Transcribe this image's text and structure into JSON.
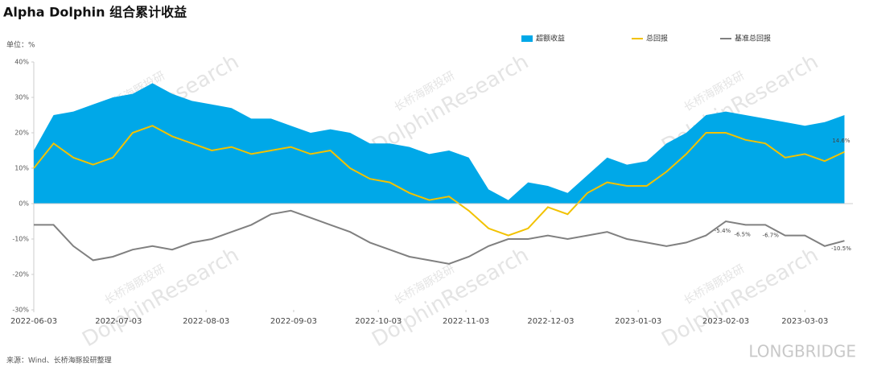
{
  "chart_data": {
    "type": "area-line",
    "title": "Alpha Dolphin 组合累计收益",
    "unit_label": "单位：%",
    "source": "来源：Wind、长桥海豚投研整理",
    "watermarks": [
      "长桥海豚投研",
      "LONGBRIDGE",
      "DolphinResearch"
    ],
    "x": [
      "2022-06-03",
      "2022-06-10",
      "2022-06-17",
      "2022-06-24",
      "2022-07-01",
      "2022-07-08",
      "2022-07-15",
      "2022-07-22",
      "2022-07-29",
      "2022-08-05",
      "2022-08-12",
      "2022-08-19",
      "2022-08-26",
      "2022-09-02",
      "2022-09-09",
      "2022-09-16",
      "2022-09-23",
      "2022-09-30",
      "2022-10-07",
      "2022-10-14",
      "2022-10-21",
      "2022-10-28",
      "2022-11-04",
      "2022-11-11",
      "2022-11-18",
      "2022-11-25",
      "2022-12-02",
      "2022-12-09",
      "2022-12-16",
      "2022-12-23",
      "2022-12-30",
      "2023-01-06",
      "2023-01-13",
      "2023-01-20",
      "2023-01-27",
      "2023-02-03",
      "2023-02-10",
      "2023-02-17",
      "2023-02-24",
      "2023-03-03",
      "2023-03-10",
      "2023-03-17"
    ],
    "series": [
      {
        "name": "超额收益",
        "kind": "area",
        "color": "#00a8e8",
        "values": [
          15,
          25,
          26,
          28,
          30,
          31,
          34,
          31,
          29,
          28,
          27,
          24,
          24,
          22,
          20,
          21,
          20,
          17,
          17,
          16,
          14,
          15,
          13,
          4,
          1,
          6,
          5,
          3,
          8,
          13,
          11,
          12,
          17,
          20,
          25,
          26,
          25,
          24,
          23,
          22,
          23,
          25
        ]
      },
      {
        "name": "总回报",
        "kind": "line",
        "color": "#f2c200",
        "values": [
          10,
          17,
          13,
          11,
          13,
          20,
          22,
          19,
          17,
          15,
          16,
          14,
          15,
          16,
          14,
          15,
          10,
          7,
          6,
          3,
          1,
          2,
          -2,
          -7,
          -9,
          -7,
          -1,
          -3,
          3,
          6,
          5,
          5,
          9,
          14,
          20,
          20,
          18,
          17,
          13,
          14,
          12,
          14.6
        ]
      },
      {
        "name": "基准总回报",
        "kind": "line",
        "color": "#808080",
        "values": [
          -6,
          -6,
          -12,
          -16,
          -15,
          -13,
          -12,
          -13,
          -11,
          -10,
          -8,
          -6,
          -3,
          -2,
          -4,
          -6,
          -8,
          -11,
          -13,
          -15,
          -16,
          -17,
          -15,
          -12,
          -10,
          -10,
          -9,
          -10,
          -9,
          -8,
          -10,
          -11,
          -12,
          -11,
          -9,
          -5,
          -6,
          -6,
          -9,
          -9,
          -12,
          -10.5
        ]
      }
    ],
    "annotations": [
      {
        "x": "2023-03-17",
        "value": 14.6,
        "label": "14.6%"
      },
      {
        "x": "2023-02-03",
        "value": -5.4,
        "label": "-5.4%"
      },
      {
        "x": "2023-02-10",
        "value": -6.5,
        "label": "-6.5%"
      },
      {
        "x": "2023-02-20",
        "value": -6.7,
        "label": "-6.7%"
      },
      {
        "x": "2023-03-17",
        "value": -10.5,
        "label": "-10.5%"
      }
    ],
    "xlim": [
      "2022-06-03",
      "2023-03-20"
    ],
    "xticks": [
      "2022-06-03",
      "2022-07-03",
      "2022-08-03",
      "2022-09-03",
      "2022-10-03",
      "2022-11-03",
      "2022-12-03",
      "2023-01-03",
      "2023-02-03",
      "2023-03-03"
    ],
    "ylim": [
      -30,
      40
    ],
    "yticks": [
      {
        "value": -30,
        "label": "-30%"
      },
      {
        "value": -20,
        "label": "-20%"
      },
      {
        "value": -10,
        "label": "-10%"
      },
      {
        "value": 0,
        "label": "0%"
      },
      {
        "value": 10,
        "label": "10%"
      },
      {
        "value": 20,
        "label": "20%"
      },
      {
        "value": 30,
        "label": "30%"
      },
      {
        "value": 40,
        "label": "40%"
      }
    ],
    "legend": "top-right"
  }
}
